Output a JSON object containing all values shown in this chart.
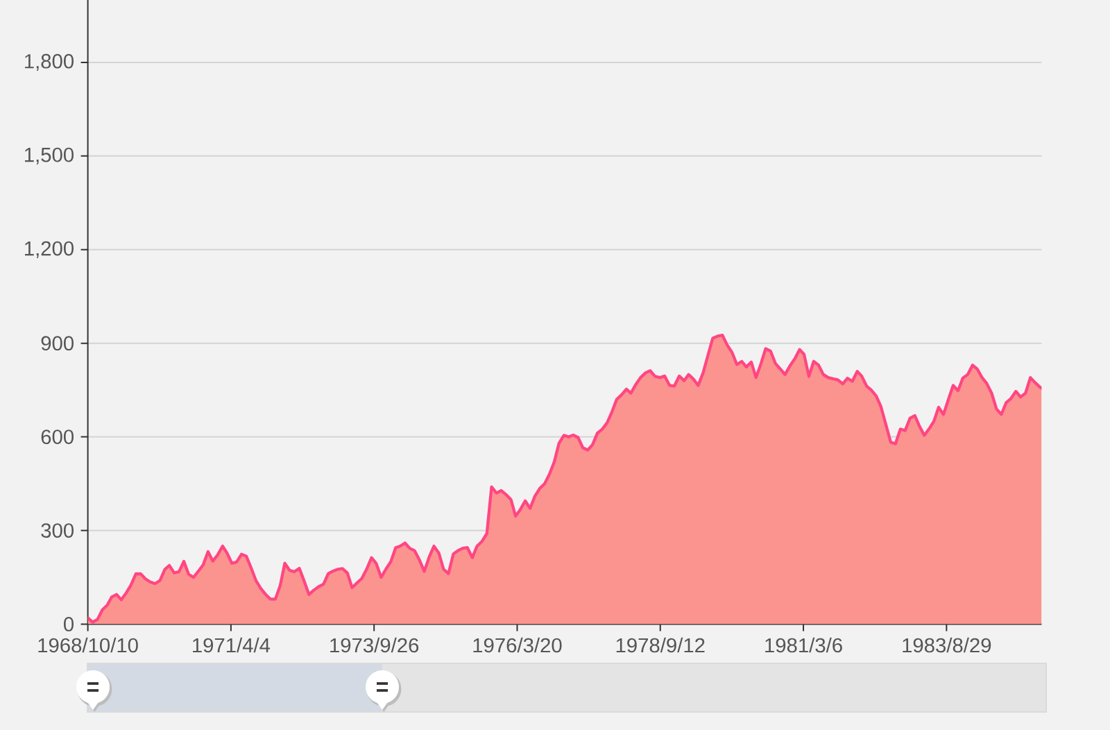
{
  "chart_data": {
    "type": "area",
    "color": "#ff4683",
    "grid": "y",
    "xlim": [
      "1968-10-10",
      "1985-04-22"
    ],
    "ylim": [
      0,
      2000
    ],
    "xticks": [
      {
        "value": "1968-10-10",
        "label": "1968/10/10"
      },
      {
        "value": "1971-04-04",
        "label": "1971/4/4"
      },
      {
        "value": "1973-09-26",
        "label": "1973/9/26"
      },
      {
        "value": "1976-03-20",
        "label": "1976/3/20"
      },
      {
        "value": "1978-09-12",
        "label": "1978/9/12"
      },
      {
        "value": "1981-03-06",
        "label": "1981/3/6"
      },
      {
        "value": "1983-08-29",
        "label": "1983/8/29"
      }
    ],
    "yticks": [
      0,
      300,
      600,
      900,
      {
        "value": 1200,
        "label": "1,200"
      },
      {
        "value": 1500,
        "label": "1,500"
      },
      {
        "value": 1800,
        "label": "1,800"
      }
    ],
    "x": [
      "1968-10-10",
      "1968-11-10",
      "1968-12-10",
      "1969-01-10",
      "1969-02-10",
      "1969-03-10",
      "1969-04-10",
      "1969-05-10",
      "1969-06-10",
      "1969-07-10",
      "1969-08-10",
      "1969-09-10",
      "1969-10-10",
      "1969-11-10",
      "1969-12-10",
      "1970-01-10",
      "1970-02-10",
      "1970-03-10",
      "1970-04-10",
      "1970-05-10",
      "1970-06-10",
      "1970-07-10",
      "1970-08-10",
      "1970-09-10",
      "1970-10-10",
      "1970-11-10",
      "1970-12-10",
      "1971-01-10",
      "1971-02-10",
      "1971-03-10",
      "1971-04-10",
      "1971-05-10",
      "1971-06-10",
      "1971-07-10",
      "1971-08-10",
      "1971-09-10",
      "1971-10-10",
      "1971-11-10",
      "1971-12-10",
      "1972-01-10",
      "1972-02-10",
      "1972-03-10",
      "1972-04-10",
      "1972-05-10",
      "1972-06-10",
      "1972-07-10",
      "1972-08-10",
      "1972-09-10",
      "1972-10-10",
      "1972-11-10",
      "1972-12-10",
      "1973-01-10",
      "1973-02-10",
      "1973-03-10",
      "1973-04-10",
      "1973-05-10",
      "1973-06-10",
      "1973-07-10",
      "1973-08-10",
      "1973-09-10",
      "1973-10-10",
      "1973-11-10",
      "1973-12-10",
      "1974-01-10",
      "1974-02-10",
      "1974-03-10",
      "1974-04-10",
      "1974-05-10",
      "1974-06-10",
      "1974-07-10",
      "1974-08-10",
      "1974-09-10",
      "1974-10-10",
      "1974-11-10",
      "1974-12-10",
      "1975-01-10",
      "1975-02-10",
      "1975-03-10",
      "1975-04-10",
      "1975-05-10",
      "1975-06-10",
      "1975-07-10",
      "1975-08-10",
      "1975-09-10",
      "1975-10-10",
      "1975-11-10",
      "1975-12-10",
      "1976-01-10",
      "1976-02-10",
      "1976-03-10",
      "1976-04-10",
      "1976-05-10",
      "1976-06-10",
      "1976-07-10",
      "1976-08-10",
      "1976-09-10",
      "1976-10-10",
      "1976-11-10",
      "1976-12-10",
      "1977-01-10",
      "1977-02-10",
      "1977-03-10",
      "1977-04-10",
      "1977-05-10",
      "1977-06-10",
      "1977-07-10",
      "1977-08-10",
      "1977-09-10",
      "1977-10-10",
      "1977-11-10",
      "1977-12-10",
      "1978-01-10",
      "1978-02-10",
      "1978-03-10",
      "1978-04-10",
      "1978-05-10",
      "1978-06-10",
      "1978-07-10",
      "1978-08-10",
      "1978-09-10",
      "1978-10-10",
      "1978-11-10",
      "1978-12-10",
      "1979-01-10",
      "1979-02-10",
      "1979-03-10",
      "1979-04-10",
      "1979-05-10",
      "1979-06-10",
      "1979-07-10",
      "1979-08-10",
      "1979-09-10",
      "1979-10-10",
      "1979-11-10",
      "1979-12-10",
      "1980-01-10",
      "1980-02-10",
      "1980-03-10",
      "1980-04-10",
      "1980-05-10",
      "1980-06-10",
      "1980-07-10",
      "1980-08-10",
      "1980-09-10",
      "1980-10-10",
      "1980-11-10",
      "1980-12-10",
      "1981-01-10",
      "1981-02-10",
      "1981-03-10",
      "1981-04-10",
      "1981-05-10",
      "1981-06-10",
      "1981-07-10",
      "1981-08-10",
      "1981-09-10",
      "1981-10-10",
      "1981-11-10",
      "1981-12-10",
      "1982-01-10",
      "1982-02-10",
      "1982-03-10",
      "1982-04-10",
      "1982-05-10",
      "1982-06-10",
      "1982-07-10",
      "1982-08-10",
      "1982-09-10",
      "1982-10-10",
      "1982-11-10",
      "1982-12-10",
      "1983-01-10",
      "1983-02-10",
      "1983-03-10",
      "1983-04-10",
      "1983-05-10",
      "1983-06-10",
      "1983-07-10",
      "1983-08-10",
      "1983-09-10",
      "1983-10-10",
      "1983-11-10",
      "1983-12-10",
      "1984-01-10",
      "1984-02-10",
      "1984-03-10",
      "1984-04-10",
      "1984-05-10",
      "1984-06-10",
      "1984-07-10",
      "1984-08-10",
      "1984-09-10",
      "1984-10-10",
      "1984-11-10",
      "1984-12-10",
      "1985-01-10",
      "1985-02-10",
      "1985-03-10",
      "1985-04-10",
      "1985-04-22"
    ],
    "values": [
      20,
      6,
      15,
      46,
      61,
      87,
      95,
      78,
      100,
      125,
      161,
      161,
      145,
      135,
      130,
      140,
      176,
      188,
      164,
      168,
      201,
      160,
      150,
      170,
      190,
      232,
      202,
      222,
      250,
      228,
      195,
      199,
      224,
      218,
      180,
      139,
      114,
      95,
      80,
      80,
      124,
      195,
      172,
      168,
      179,
      139,
      95,
      109,
      120,
      128,
      162,
      170,
      176,
      178,
      164,
      117,
      132,
      146,
      176,
      213,
      194,
      150,
      176,
      200,
      245,
      250,
      260,
      243,
      235,
      206,
      169,
      215,
      250,
      228,
      176,
      162,
      225,
      235,
      243,
      245,
      213,
      250,
      265,
      290,
      440,
      420,
      428,
      415,
      399,
      346,
      368,
      395,
      371,
      410,
      435,
      450,
      480,
      520,
      580,
      605,
      600,
      606,
      598,
      565,
      558,
      575,
      612,
      625,
      645,
      680,
      720,
      735,
      753,
      740,
      768,
      790,
      805,
      812,
      794,
      790,
      795,
      765,
      763,
      795,
      780,
      800,
      785,
      765,
      805,
      860,
      916,
      923,
      926,
      894,
      871,
      832,
      842,
      824,
      840,
      790,
      834,
      883,
      875,
      835,
      818,
      800,
      827,
      850,
      880,
      865,
      794,
      842,
      830,
      800,
      790,
      786,
      783,
      770,
      788,
      778,
      810,
      795,
      763,
      750,
      731,
      697,
      640,
      583,
      578,
      625,
      620,
      660,
      668,
      635,
      605,
      625,
      650,
      695,
      672,
      720,
      765,
      748,
      788,
      800,
      830,
      818,
      790,
      771,
      740,
      690,
      672,
      710,
      723,
      746,
      728,
      740,
      790,
      775,
      760,
      756
    ]
  }
}
